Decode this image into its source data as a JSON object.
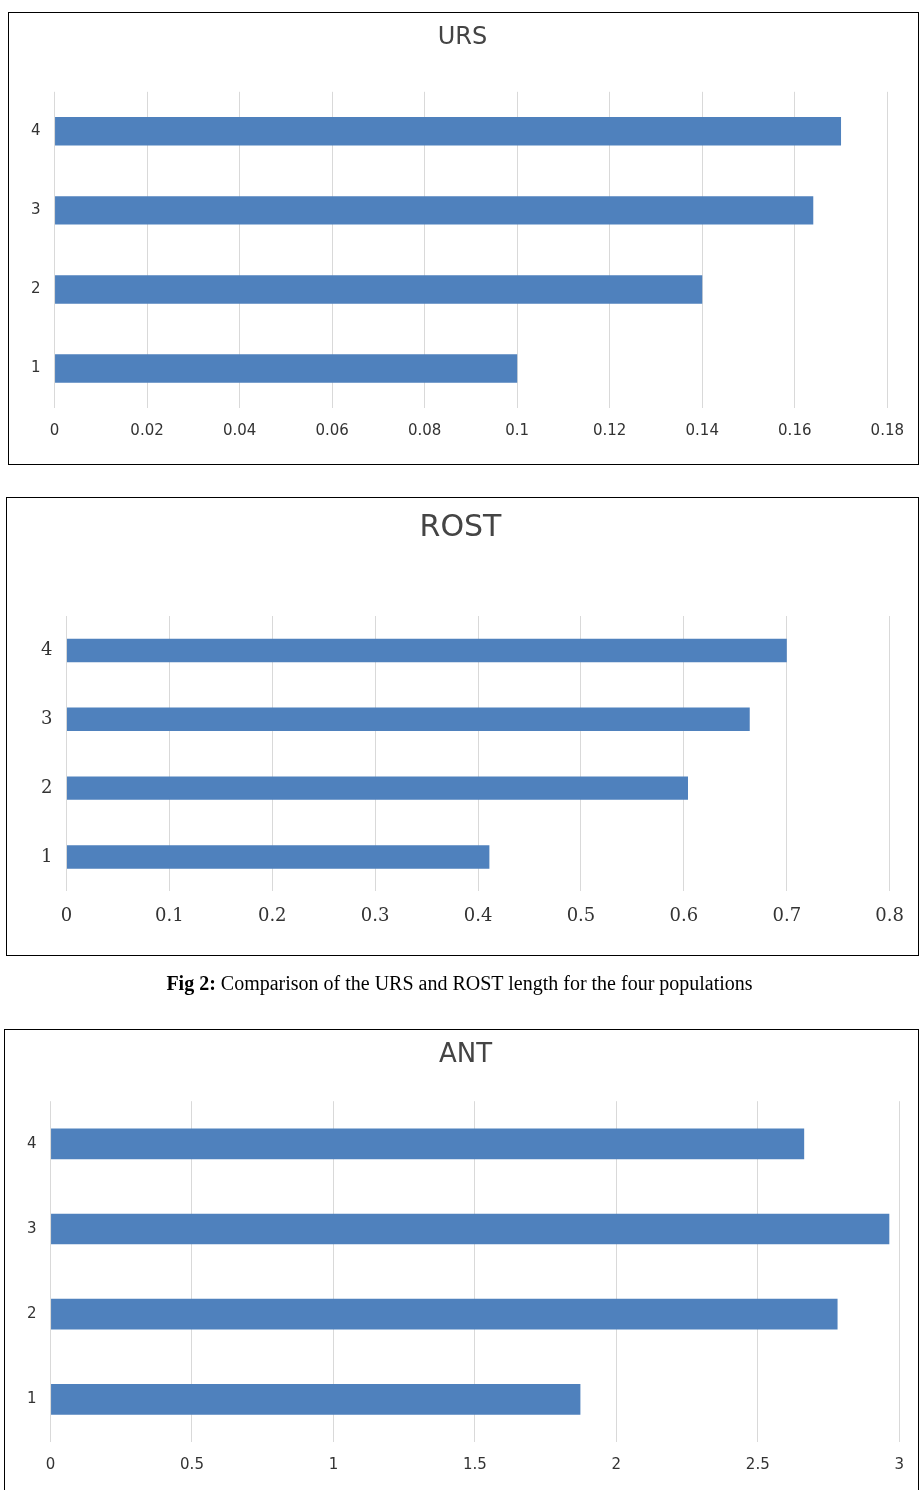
{
  "chart_data": [
    {
      "type": "bar",
      "title": "URS",
      "orientation": "horizontal",
      "categories": [
        "4",
        "3",
        "2",
        "1"
      ],
      "values": [
        0.17,
        0.164,
        0.14,
        0.1
      ],
      "color": "#4f81bd",
      "xlim": [
        0,
        0.18
      ],
      "xticks": [
        0,
        0.02,
        0.04,
        0.06,
        0.08,
        0.1,
        0.12,
        0.14,
        0.16,
        0.18
      ],
      "grid": "x",
      "legend": false
    },
    {
      "type": "bar",
      "title": "ROST",
      "orientation": "horizontal",
      "categories": [
        "4",
        "3",
        "2",
        "1"
      ],
      "values": [
        0.7,
        0.664,
        0.604,
        0.411
      ],
      "color": "#4f81bd",
      "xlim": [
        0,
        0.8
      ],
      "xticks": [
        0,
        0.1,
        0.2,
        0.3,
        0.4,
        0.5,
        0.6,
        0.7,
        0.8
      ],
      "grid": "x",
      "legend": false,
      "annotations": [
        "Fig 2: Comparison of the URS and ROST length for the four populations"
      ]
    },
    {
      "type": "bar",
      "title": "ANT",
      "orientation": "horizontal",
      "categories": [
        "4",
        "3",
        "2",
        "1"
      ],
      "values": [
        2.664,
        2.965,
        2.782,
        1.873
      ],
      "color": "#4f81bd",
      "xlim": [
        0,
        3
      ],
      "xticks": [
        0,
        0.5,
        1,
        1.5,
        2,
        2.5,
        3
      ],
      "grid": "x",
      "legend": false
    }
  ]
}
